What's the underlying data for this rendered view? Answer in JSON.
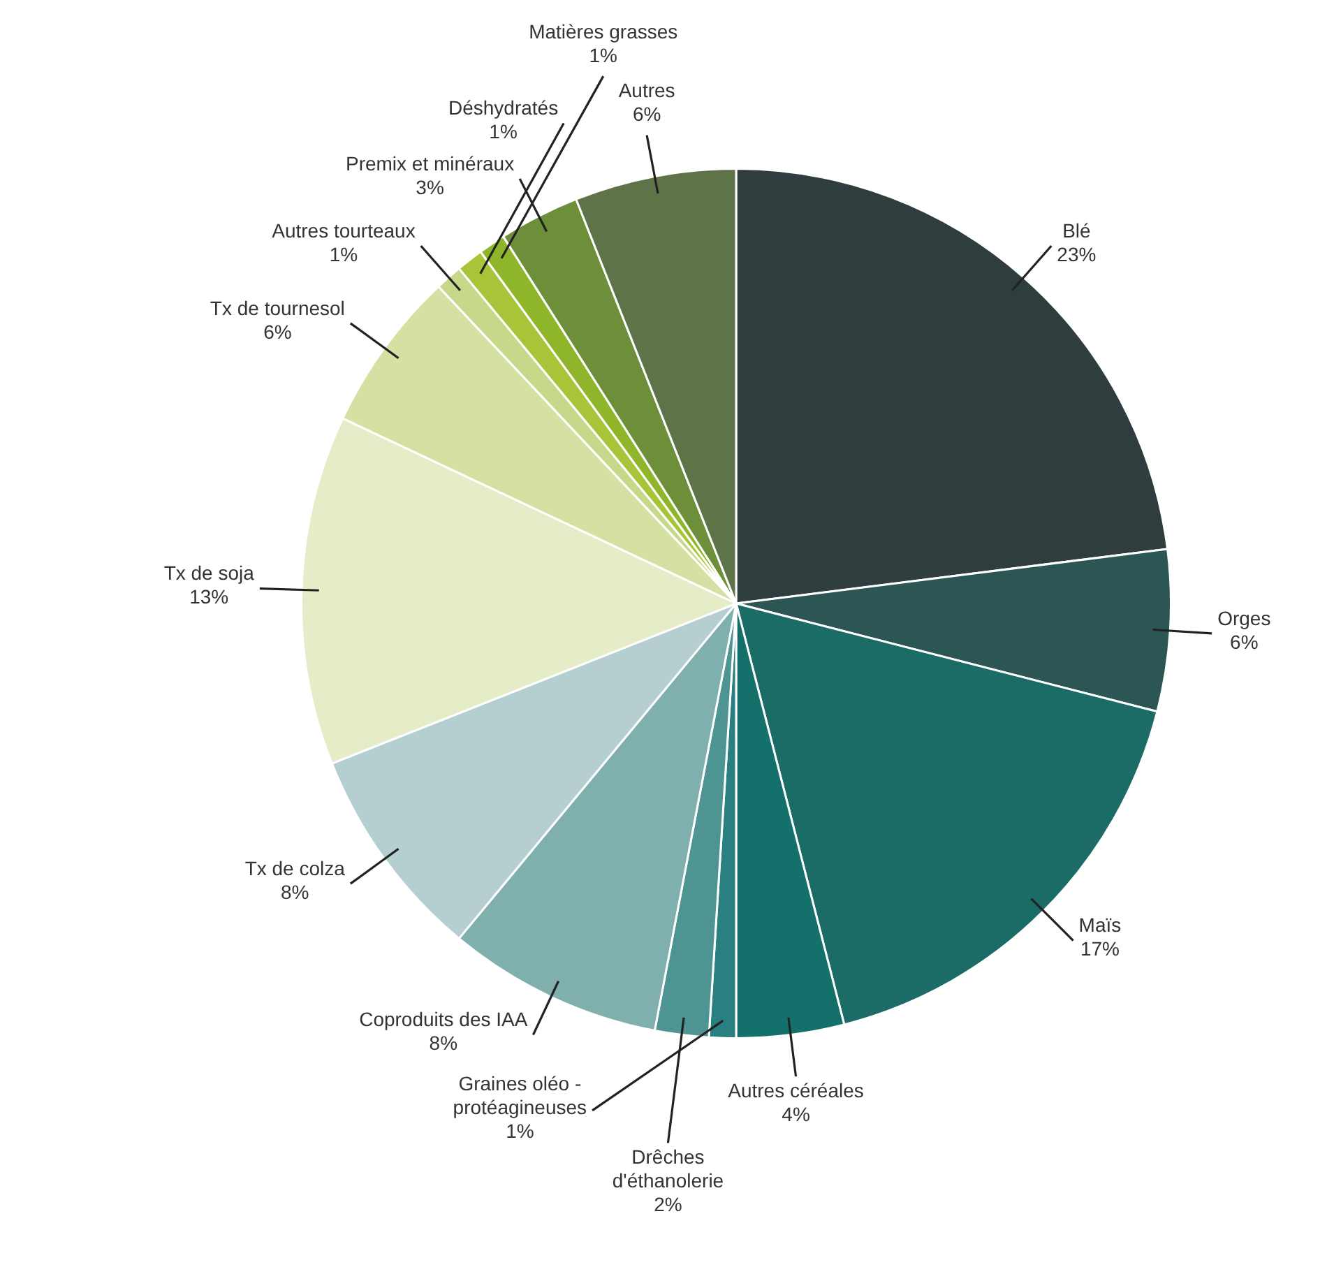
{
  "chart_data": {
    "type": "pie",
    "categories": [
      "Blé",
      "Orges",
      "Maïs",
      "Autres céréales",
      "Graines oléo - protéagineuses",
      "Drêches d'éthanolerie",
      "Coproduits des IAA",
      "Tx de colza",
      "Tx de soja",
      "Tx de tournesol",
      "Autres tourteaux",
      "Déshydratés",
      "Matières grasses",
      "Premix et minéraux",
      "Autres"
    ],
    "values": [
      23,
      6,
      17,
      4,
      1,
      2,
      8,
      8,
      13,
      6,
      1,
      1,
      1,
      3,
      6
    ],
    "colors": [
      "#2f3d3e",
      "#2b5653",
      "#1b6b66",
      "#14706a",
      "#2a8080",
      "#4e9492",
      "#7fb0ad",
      "#b5cfd0",
      "#e5ecc8",
      "#d5e1a2",
      "#c6d98a",
      "#a8c53a",
      "#8fb62a",
      "#6e8f3a",
      "#5e7448"
    ],
    "value_labels": [
      "23%",
      "6%",
      "17%",
      "4%",
      "1%",
      "2%",
      "8%",
      "8%",
      "13%",
      "6%",
      "1%",
      "1%",
      "1%",
      "3%",
      "6%"
    ]
  }
}
